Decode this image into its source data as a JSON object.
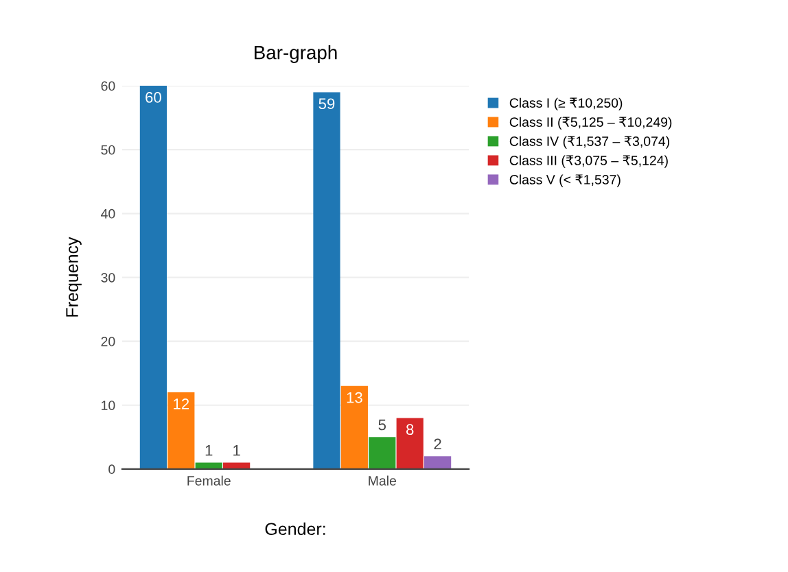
{
  "chart_data": {
    "type": "bar",
    "title": "Bar-graph",
    "xlabel": "Gender:",
    "ylabel": "Frequency",
    "categories": [
      "Female",
      "Male"
    ],
    "series": [
      {
        "name": "Class I (≥ ₹10,250)",
        "color": "#1f77b4",
        "values": [
          60,
          59
        ],
        "value_labels": [
          "60",
          "59"
        ]
      },
      {
        "name": "Class II (₹5,125 – ₹10,249)",
        "color": "#ff7f0e",
        "values": [
          12,
          13
        ],
        "value_labels": [
          "12",
          "13"
        ]
      },
      {
        "name": "Class IV (₹1,537 – ₹3,074)",
        "color": "#2ca02c",
        "values": [
          1,
          5
        ],
        "value_labels": [
          "1",
          "5"
        ]
      },
      {
        "name": "Class III (₹3,075 – ₹5,124)",
        "color": "#d62728",
        "values": [
          1,
          8
        ],
        "value_labels": [
          "1",
          "8"
        ]
      },
      {
        "name": "Class V (< ₹1,537)",
        "color": "#9467bd",
        "values": [
          0,
          2
        ],
        "value_labels": [
          null,
          "2"
        ]
      }
    ],
    "ylim": [
      0,
      60
    ],
    "yticks": [
      0,
      10,
      20,
      30,
      40,
      50,
      60
    ],
    "grid": "y",
    "legend": "top right"
  }
}
